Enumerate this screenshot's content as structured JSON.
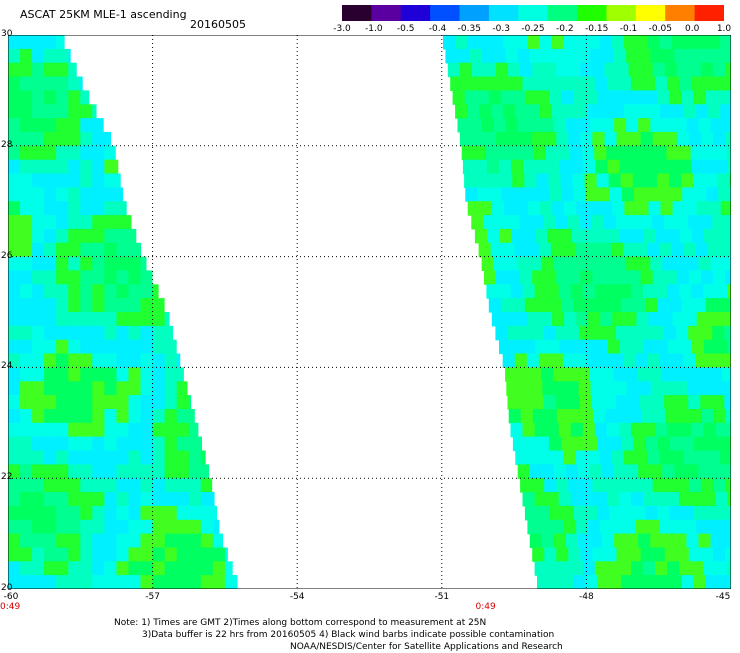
{
  "header": {
    "title": "ASCAT 25KM MLE-1 ascending",
    "date": "20160505"
  },
  "colorbar": {
    "tick_labels": [
      "-3.0",
      "-1.0",
      "-0.5",
      "-0.4",
      "-0.35",
      "-0.3",
      "-0.25",
      "-0.2",
      "-0.15",
      "-0.1",
      "-0.05",
      "0.0",
      "1.0"
    ],
    "colors": [
      "#2a0030",
      "#5a00a0",
      "#2000d8",
      "#0050ff",
      "#00a0ff",
      "#00e0ff",
      "#00ffe0",
      "#00ff80",
      "#20ff00",
      "#a0ff00",
      "#ffff00",
      "#ff8000",
      "#ff2000"
    ]
  },
  "map": {
    "lon_range": [
      -60,
      -45
    ],
    "lat_range": [
      20,
      30
    ],
    "x_ticks": [
      "-60",
      "-57",
      "-54",
      "-51",
      "-48",
      "-45"
    ],
    "y_ticks": [
      "30",
      "28",
      "26",
      "24",
      "22",
      "20"
    ],
    "time_labels": [
      {
        "text": "0:49",
        "lon": -60
      },
      {
        "text": "0:49",
        "lon": -50.3
      }
    ],
    "swaths": [
      {
        "name": "west-swath",
        "outer_lon": -60,
        "inner_edge": [
          [
            30,
            -58.9
          ],
          [
            29,
            -58.4
          ],
          [
            28,
            -57.8
          ],
          [
            27,
            -57.6
          ],
          [
            26,
            -57.2
          ],
          [
            25,
            -56.7
          ],
          [
            24,
            -56.4
          ],
          [
            23,
            -56.1
          ],
          [
            22,
            -55.8
          ],
          [
            21,
            -55.6
          ],
          [
            20,
            -55.2
          ]
        ]
      },
      {
        "name": "east-swath",
        "outer_lon": -45,
        "inner_edge": [
          [
            30,
            -51.0
          ],
          [
            29,
            -50.8
          ],
          [
            28,
            -50.6
          ],
          [
            27,
            -50.5
          ],
          [
            26,
            -50.2
          ],
          [
            25,
            -50.0
          ],
          [
            24,
            -49.7
          ],
          [
            23,
            -49.6
          ],
          [
            22,
            -49.4
          ],
          [
            21,
            -49.2
          ],
          [
            20,
            -49.0
          ]
        ]
      }
    ]
  },
  "notes": {
    "line1": "Note: 1) Times are GMT 2)Times along bottom correspond to measurement at 25N",
    "line2": "3)Data buffer is 22 hrs from 20160505 4) Black wind barbs indicate possible contamination",
    "line3": "NOAA/NESDIS/Center for Satellite Applications and Research"
  }
}
